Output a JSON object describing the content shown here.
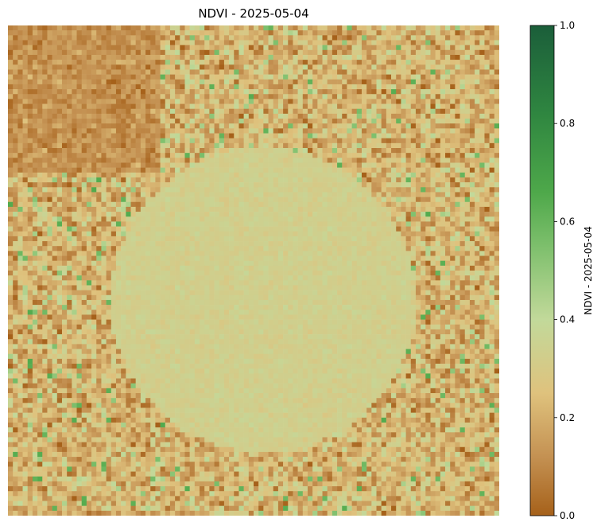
{
  "chart_data": {
    "type": "heatmap",
    "title": "NDVI - 2025-05-04",
    "colorbar": {
      "label": "NDVI - 2025-05-04",
      "vmin": 0.0,
      "vmax": 1.0,
      "ticks": [
        0.0,
        0.2,
        0.4,
        0.6,
        0.8,
        1.0
      ],
      "tick_labels": [
        "0.0",
        "0.2",
        "0.4",
        "0.6",
        "0.8",
        "1.0"
      ]
    },
    "colormap": [
      {
        "v": 0.0,
        "color": "#a6611a"
      },
      {
        "v": 0.12,
        "color": "#c49152"
      },
      {
        "v": 0.25,
        "color": "#dfc27d"
      },
      {
        "v": 0.4,
        "color": "#c2d99a"
      },
      {
        "v": 0.55,
        "color": "#7dbf6c"
      },
      {
        "v": 0.66,
        "color": "#4ea84a"
      },
      {
        "v": 0.82,
        "color": "#2f8640"
      },
      {
        "v": 1.0,
        "color": "#1b5e3a"
      }
    ],
    "grid": {
      "rows": 100,
      "cols": 100
    },
    "regions": {
      "background": {
        "mean": 0.22,
        "spread": 0.14
      },
      "bare_patch_top_left": {
        "mean": 0.12,
        "spread": 0.07
      },
      "crop_circle": {
        "mean": 0.33,
        "spread": 0.03
      }
    },
    "axes": {
      "x_ticks": false,
      "y_ticks": false
    }
  }
}
